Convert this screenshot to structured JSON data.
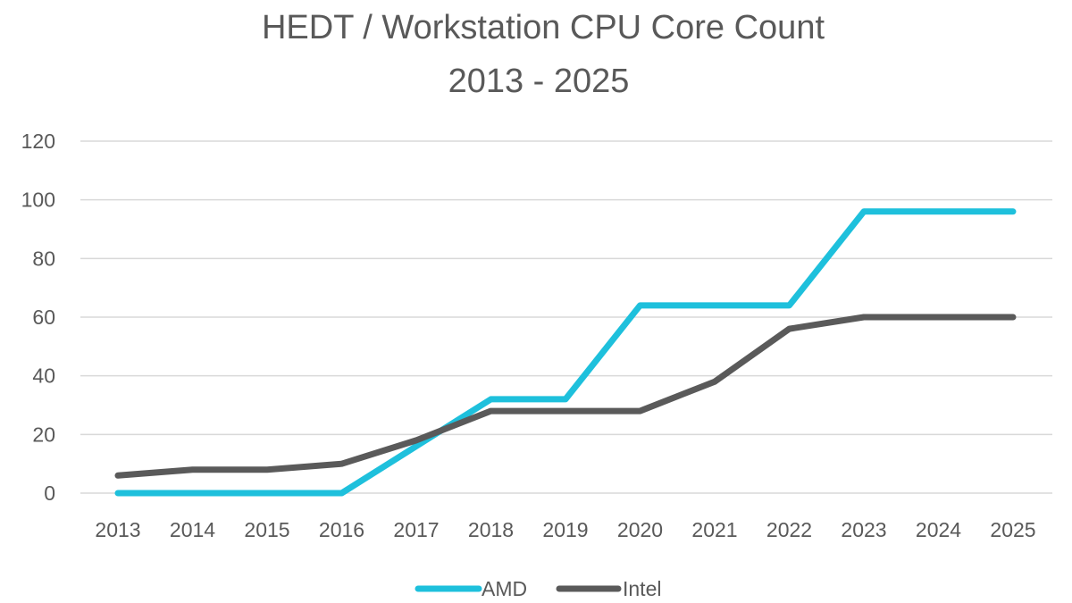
{
  "chart_data": {
    "type": "line",
    "title": "HEDT /  Workstation CPU Core Count",
    "subtitle": "2013 - 2025",
    "xlabel": "",
    "ylabel": "",
    "categories": [
      "2013",
      "2014",
      "2015",
      "2016",
      "2017",
      "2018",
      "2019",
      "2020",
      "2021",
      "2022",
      "2023",
      "2024",
      "2025"
    ],
    "ylim": [
      0,
      120
    ],
    "yticks": [
      0,
      20,
      40,
      60,
      80,
      100,
      120
    ],
    "grid": true,
    "legend": "bottom",
    "series": [
      {
        "name": "AMD",
        "color": "#1ec0dc",
        "values": [
          0,
          0,
          0,
          0,
          16,
          32,
          32,
          64,
          64,
          64,
          96,
          96,
          96
        ]
      },
      {
        "name": "Intel",
        "color": "#5a5a5a",
        "values": [
          6,
          8,
          8,
          10,
          18,
          28,
          28,
          28,
          38,
          56,
          60,
          60,
          60
        ]
      }
    ]
  }
}
